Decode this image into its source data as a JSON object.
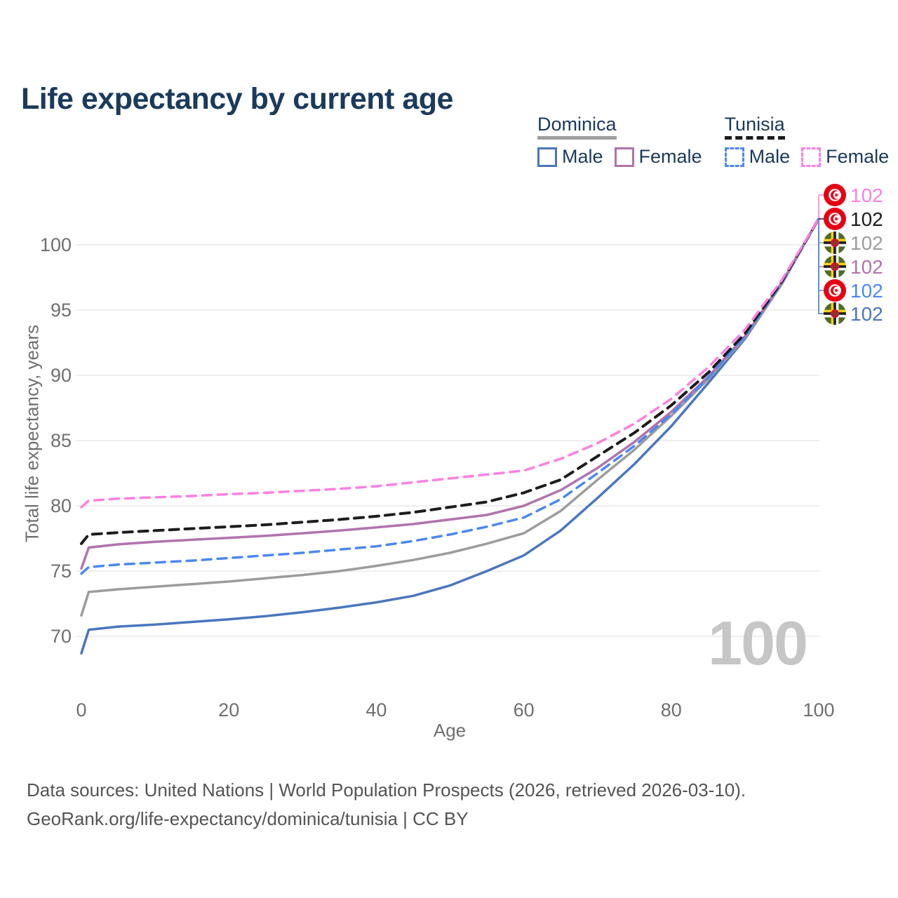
{
  "title": "Life expectancy by current age",
  "legend": {
    "groups": [
      {
        "id": "dominica",
        "label": "Dominica",
        "underline_color": "#9e9e9e",
        "underline_dashed": false,
        "items": [
          {
            "label": "Male",
            "color": "#4a76bd",
            "dashed": false
          },
          {
            "label": "Female",
            "color": "#b073ad",
            "dashed": false
          }
        ]
      },
      {
        "id": "tunisia",
        "label": "Tunisia",
        "underline_color": "#1c1c1c",
        "underline_dashed": true,
        "items": [
          {
            "label": "Male",
            "color": "#4b88f0",
            "dashed": true
          },
          {
            "label": "Female",
            "color": "#fb80e1",
            "dashed": true
          }
        ]
      }
    ]
  },
  "colors": {
    "title": "#1b3a5c",
    "axis_text": "#6f6f6f",
    "grid": "#e9e9e9",
    "footer_text": "#545454",
    "watermark": "#c6c6c6",
    "background": "#ffffff"
  },
  "chart_data": {
    "type": "line",
    "title": "Life expectancy by current age",
    "xlabel": "Age",
    "ylabel": "Total life expectancy, years",
    "xlim": [
      0,
      100
    ],
    "ylim": [
      68,
      103
    ],
    "xticks": [
      0,
      20,
      40,
      60,
      80,
      100
    ],
    "yticks": [
      70,
      75,
      80,
      85,
      90,
      95,
      100
    ],
    "grid": "horizontal",
    "legend_position": "top-right",
    "age_watermark": "100",
    "x": [
      0,
      1,
      5,
      10,
      15,
      20,
      25,
      30,
      35,
      40,
      45,
      50,
      55,
      60,
      65,
      70,
      75,
      80,
      85,
      90,
      95,
      100
    ],
    "series": [
      {
        "id": "dominica-male",
        "name": "Dominica Male",
        "country": "Dominica",
        "sex": "Male",
        "color": "#4a76bd",
        "dash": false,
        "width": 3.5,
        "flag": "dominica",
        "end_label": "102",
        "label_slot": 5,
        "values": [
          68.7,
          70.5,
          70.75,
          70.9,
          71.1,
          71.3,
          71.55,
          71.85,
          72.2,
          72.6,
          73.1,
          73.9,
          75.0,
          76.2,
          78.1,
          80.6,
          83.2,
          86.1,
          89.4,
          92.8,
          97.0,
          102
        ]
      },
      {
        "id": "dominica-both",
        "name": "Dominica",
        "country": "Dominica",
        "sex": "Both",
        "color": "#9c9c9c",
        "dash": false,
        "width": 3.5,
        "flag": "dominica",
        "end_label": "102",
        "label_slot": 2,
        "values": [
          71.6,
          73.4,
          73.6,
          73.8,
          74.0,
          74.2,
          74.45,
          74.7,
          75.0,
          75.4,
          75.85,
          76.4,
          77.1,
          77.9,
          79.6,
          82.0,
          84.3,
          86.9,
          89.7,
          92.9,
          97.0,
          102
        ]
      },
      {
        "id": "dominica-female",
        "name": "Dominica Female",
        "country": "Dominica",
        "sex": "Female",
        "color": "#b073ad",
        "dash": false,
        "width": 3.5,
        "flag": "dominica",
        "end_label": "102",
        "label_slot": 3,
        "values": [
          75.2,
          76.8,
          77.05,
          77.25,
          77.4,
          77.55,
          77.7,
          77.9,
          78.1,
          78.35,
          78.6,
          78.95,
          79.3,
          80.0,
          81.2,
          82.9,
          84.9,
          87.2,
          89.9,
          93.0,
          97.1,
          102
        ]
      },
      {
        "id": "tunisia-male",
        "name": "Tunisia Male",
        "country": "Tunisia",
        "sex": "Male",
        "color": "#4b88f0",
        "dash": true,
        "width": 3.5,
        "flag": "tunisia",
        "end_label": "102",
        "label_slot": 4,
        "values": [
          74.8,
          75.3,
          75.5,
          75.65,
          75.8,
          76.0,
          76.2,
          76.4,
          76.65,
          76.9,
          77.3,
          77.8,
          78.4,
          79.1,
          80.5,
          82.5,
          84.6,
          87.0,
          89.8,
          93.0,
          97.1,
          102
        ]
      },
      {
        "id": "tunisia-both",
        "name": "Tunisia",
        "country": "Tunisia",
        "sex": "Both",
        "color": "#1c1c1c",
        "dash": true,
        "width": 4,
        "flag": "tunisia",
        "end_label": "102",
        "label_slot": 1,
        "values": [
          77.1,
          77.8,
          77.95,
          78.1,
          78.25,
          78.4,
          78.55,
          78.75,
          78.95,
          79.2,
          79.5,
          79.9,
          80.3,
          81.0,
          82.0,
          83.8,
          85.6,
          87.7,
          90.2,
          93.2,
          97.2,
          102
        ]
      },
      {
        "id": "tunisia-female",
        "name": "Tunisia Female",
        "country": "Tunisia",
        "sex": "Female",
        "color": "#fb80e1",
        "dash": true,
        "width": 3.5,
        "flag": "tunisia",
        "end_label": "102",
        "label_slot": 0,
        "values": [
          79.9,
          80.4,
          80.55,
          80.65,
          80.75,
          80.9,
          81.0,
          81.15,
          81.3,
          81.5,
          81.8,
          82.1,
          82.4,
          82.7,
          83.6,
          84.8,
          86.3,
          88.2,
          90.6,
          93.5,
          97.3,
          102
        ]
      }
    ]
  },
  "footer": {
    "line1": "Data sources: United Nations | World Population Prospects (2026, retrieved 2026-03-10).",
    "line2": "GeoRank.org/life-expectancy/dominica/tunisia | CC BY"
  }
}
